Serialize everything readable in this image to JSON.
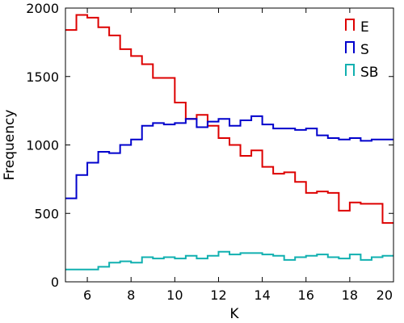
{
  "chart_data": {
    "type": "step-histogram",
    "xlabel": "K",
    "ylabel": "Frequency",
    "xlim": [
      5,
      20
    ],
    "ylim": [
      0,
      2000
    ],
    "x_ticks": [
      6,
      8,
      10,
      12,
      14,
      16,
      18,
      20
    ],
    "y_ticks": [
      0,
      500,
      1000,
      1500,
      2000
    ],
    "grid": false,
    "legend_position": "top-right",
    "bin_edges": [
      5,
      5.5,
      6,
      6.5,
      7,
      7.5,
      8,
      8.5,
      9,
      9.5,
      10,
      10.5,
      11,
      11.5,
      12,
      12.5,
      13,
      13.5,
      14,
      14.5,
      15,
      15.5,
      16,
      16.5,
      17,
      17.5,
      18,
      18.5,
      19,
      19.5,
      20
    ],
    "series": [
      {
        "name": "E",
        "color": "#dd0000",
        "values": [
          1840,
          1950,
          1930,
          1860,
          1800,
          1700,
          1650,
          1590,
          1490,
          1490,
          1310,
          1190,
          1220,
          1140,
          1050,
          1000,
          920,
          960,
          840,
          790,
          800,
          730,
          650,
          660,
          650,
          520,
          580,
          570,
          570,
          430
        ]
      },
      {
        "name": "S",
        "color": "#0000cc",
        "values": [
          610,
          780,
          870,
          950,
          940,
          1000,
          1040,
          1140,
          1160,
          1150,
          1160,
          1190,
          1130,
          1170,
          1190,
          1140,
          1180,
          1210,
          1150,
          1120,
          1120,
          1110,
          1120,
          1070,
          1050,
          1040,
          1050,
          1030,
          1040,
          1040
        ]
      },
      {
        "name": "SB",
        "color": "#11b0b0",
        "values": [
          90,
          90,
          90,
          110,
          140,
          150,
          140,
          180,
          170,
          180,
          170,
          190,
          170,
          190,
          220,
          200,
          210,
          210,
          200,
          190,
          160,
          180,
          190,
          200,
          180,
          170,
          200,
          160,
          180,
          190
        ]
      }
    ]
  }
}
